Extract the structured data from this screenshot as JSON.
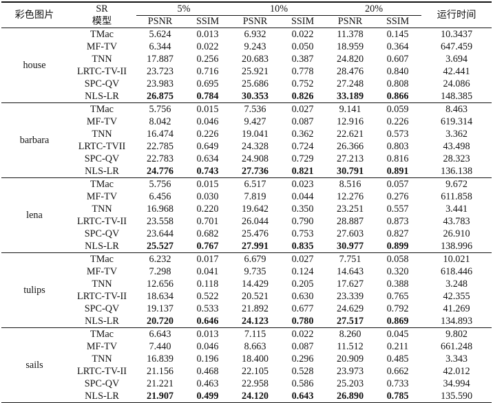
{
  "header": {
    "image_col": "彩色图片",
    "sr_label": "SR",
    "model_label": "模型",
    "runtime_col": "运行时间",
    "rates": [
      "5%",
      "10%",
      "20%"
    ],
    "metric_psnr": "PSNR",
    "metric_ssim": "SSIM"
  },
  "groups": [
    {
      "name": "house",
      "rows": [
        {
          "model": "TMac",
          "v": [
            "5.624",
            "0.013",
            "6.932",
            "0.022",
            "11.378",
            "0.145"
          ],
          "time": "10.3437",
          "bold": false
        },
        {
          "model": "MF-TV",
          "v": [
            "6.344",
            "0.022",
            "9.243",
            "0.050",
            "18.959",
            "0.364"
          ],
          "time": "647.459",
          "bold": false
        },
        {
          "model": "TNN",
          "v": [
            "17.887",
            "0.256",
            "20.683",
            "0.387",
            "24.820",
            "0.607"
          ],
          "time": "3.694",
          "bold": false
        },
        {
          "model": "LRTC-TV-II",
          "v": [
            "23.723",
            "0.716",
            "25.921",
            "0.778",
            "28.476",
            "0.840"
          ],
          "time": "42.441",
          "bold": false
        },
        {
          "model": "SPC-QV",
          "v": [
            "23.983",
            "0.695",
            "25.686",
            "0.752",
            "27.248",
            "0.808"
          ],
          "time": "24.086",
          "bold": false
        },
        {
          "model": "NLS-LR",
          "v": [
            "26.875",
            "0.784",
            "30.353",
            "0.826",
            "33.189",
            "0.866"
          ],
          "time": "148.385",
          "bold": true
        }
      ]
    },
    {
      "name": "barbara",
      "rows": [
        {
          "model": "TMac",
          "v": [
            "5.756",
            "0.015",
            "7.536",
            "0.027",
            "9.141",
            "0.059"
          ],
          "time": "8.463",
          "bold": false
        },
        {
          "model": "MF-TV",
          "v": [
            "8.042",
            "0.046",
            "9.427",
            "0.087",
            "12.916",
            "0.226"
          ],
          "time": "619.314",
          "bold": false
        },
        {
          "model": "TNN",
          "v": [
            "16.474",
            "0.226",
            "19.041",
            "0.362",
            "22.621",
            "0.573"
          ],
          "time": "3.362",
          "bold": false
        },
        {
          "model": "LRTC-TVII",
          "v": [
            "22.785",
            "0.649",
            "24.328",
            "0.724",
            "26.366",
            "0.803"
          ],
          "time": "43.498",
          "bold": false
        },
        {
          "model": "SPC-QV",
          "v": [
            "22.783",
            "0.634",
            "24.908",
            "0.729",
            "27.213",
            "0.816"
          ],
          "time": "28.323",
          "bold": false
        },
        {
          "model": "NLS-LR",
          "v": [
            "24.776",
            "0.743",
            "27.736",
            "0.821",
            "30.791",
            "0.891"
          ],
          "time": "136.138",
          "bold": true
        }
      ]
    },
    {
      "name": "lena",
      "rows": [
        {
          "model": "TMac",
          "v": [
            "5.756",
            "0.015",
            "6.517",
            "0.023",
            "8.516",
            "0.057"
          ],
          "time": "9.672",
          "bold": false
        },
        {
          "model": "MF-TV",
          "v": [
            "6.456",
            "0.030",
            "7.819",
            "0.044",
            "12.276",
            "0.276"
          ],
          "time": "611.858",
          "bold": false
        },
        {
          "model": "TNN",
          "v": [
            "16.968",
            "0.220",
            "19.642",
            "0.350",
            "23.251",
            "0.557"
          ],
          "time": "3.441",
          "bold": false
        },
        {
          "model": "LRTC-TV-II",
          "v": [
            "23.558",
            "0.701",
            "26.044",
            "0.790",
            "28.887",
            "0.873"
          ],
          "time": "43.783",
          "bold": false
        },
        {
          "model": "SPC-QV",
          "v": [
            "23.644",
            "0.682",
            "25.476",
            "0.753",
            "27.603",
            "0.827"
          ],
          "time": "26.910",
          "bold": false
        },
        {
          "model": "NLS-LR",
          "v": [
            "25.527",
            "0.767",
            "27.991",
            "0.835",
            "30.977",
            "0.899"
          ],
          "time": "138.996",
          "bold": true
        }
      ]
    },
    {
      "name": "tulips",
      "rows": [
        {
          "model": "TMac",
          "v": [
            "6.232",
            "0.017",
            "6.679",
            "0.027",
            "7.751",
            "0.058"
          ],
          "time": "10.021",
          "bold": false
        },
        {
          "model": "MF-TV",
          "v": [
            "7.298",
            "0.041",
            "9.735",
            "0.124",
            "14.643",
            "0.320"
          ],
          "time": "618.446",
          "bold": false
        },
        {
          "model": "TNN",
          "v": [
            "12.656",
            "0.118",
            "14.429",
            "0.205",
            "17.627",
            "0.388"
          ],
          "time": "3.248",
          "bold": false
        },
        {
          "model": "LRTC-TV-II",
          "v": [
            "18.634",
            "0.522",
            "20.521",
            "0.630",
            "23.339",
            "0.765"
          ],
          "time": "42.355",
          "bold": false
        },
        {
          "model": "SPC-QV",
          "v": [
            "19.137",
            "0.533",
            "21.892",
            "0.677",
            "24.629",
            "0.792"
          ],
          "time": "41.269",
          "bold": false
        },
        {
          "model": "NLS-LR",
          "v": [
            "20.720",
            "0.646",
            "24.123",
            "0.780",
            "27.517",
            "0.869"
          ],
          "time": "134.893",
          "bold": true
        }
      ]
    },
    {
      "name": "sails",
      "rows": [
        {
          "model": "TMac",
          "v": [
            "6.643",
            "0.013",
            "7.115",
            "0.022",
            "8.260",
            "0.045"
          ],
          "time": "9.802",
          "bold": false
        },
        {
          "model": "MF-TV",
          "v": [
            "7.440",
            "0.046",
            "8.663",
            "0.087",
            "11.512",
            "0.211"
          ],
          "time": "661.248",
          "bold": false
        },
        {
          "model": "TNN",
          "v": [
            "16.839",
            "0.196",
            "18.400",
            "0.296",
            "20.909",
            "0.485"
          ],
          "time": "3.343",
          "bold": false
        },
        {
          "model": "LRTC-TV-II",
          "v": [
            "21.156",
            "0.468",
            "22.105",
            "0.528",
            "23.973",
            "0.662"
          ],
          "time": "42.012",
          "bold": false
        },
        {
          "model": "SPC-QV",
          "v": [
            "21.221",
            "0.463",
            "22.958",
            "0.586",
            "25.203",
            "0.733"
          ],
          "time": "34.994",
          "bold": false
        },
        {
          "model": "NLS-LR",
          "v": [
            "21.907",
            "0.499",
            "24.120",
            "0.643",
            "26.890",
            "0.785"
          ],
          "time": "135.590",
          "bold": true
        }
      ]
    }
  ]
}
